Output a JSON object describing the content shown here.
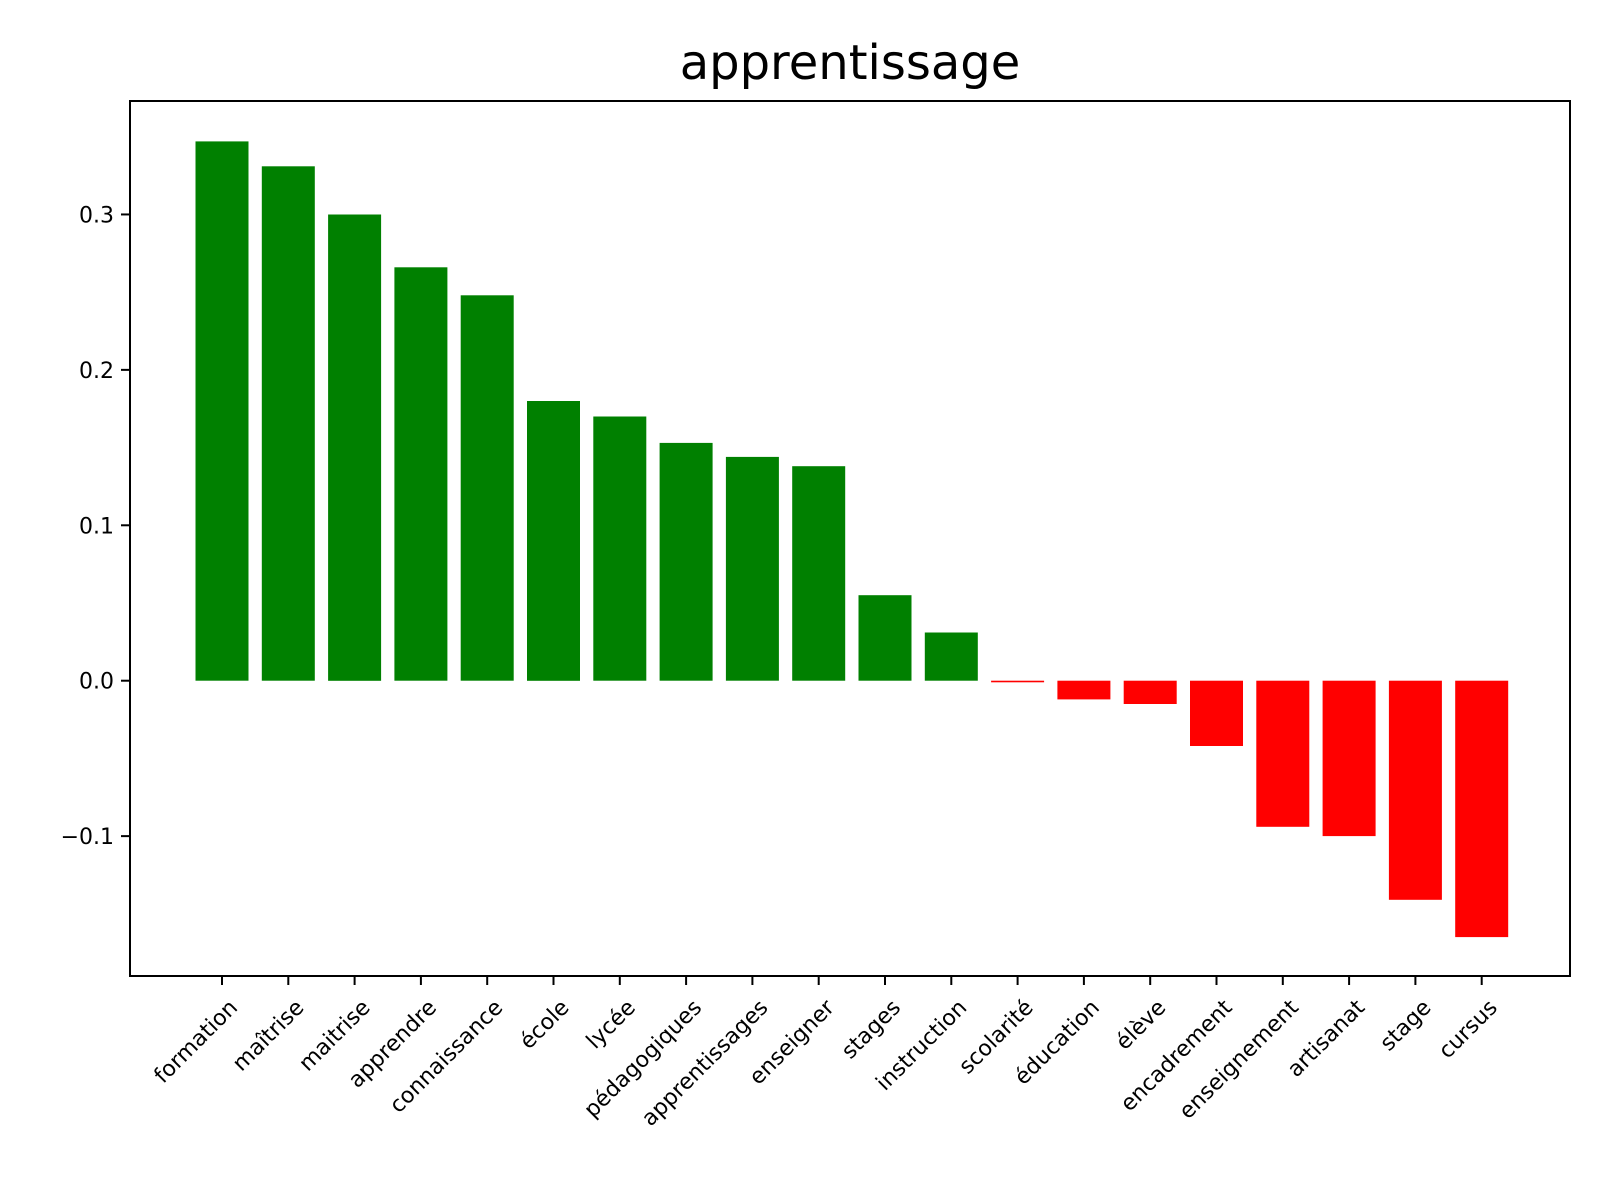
{
  "chart_data": {
    "type": "bar",
    "title": "apprentissage",
    "xlabel": "",
    "ylabel": "",
    "ylim": [
      -0.19,
      0.373
    ],
    "yticks": [
      -0.1,
      0.0,
      0.1,
      0.2,
      0.3
    ],
    "ytick_labels": [
      "−0.1",
      "0.0",
      "0.1",
      "0.2",
      "0.3"
    ],
    "grid": false,
    "legend": "none",
    "positive_color": "#008000",
    "negative_color": "#ff0000",
    "categories": [
      "formation",
      "maîtrise",
      "maitrise",
      "apprendre",
      "connaissance",
      "école",
      "lycée",
      "pédagogiques",
      "apprentissages",
      "enseigner",
      "stages",
      "instruction",
      "scolarité",
      "éducation",
      "élève",
      "encadrement",
      "enseignement",
      "artisanat",
      "stage",
      "cursus"
    ],
    "values": [
      0.347,
      0.331,
      0.3,
      0.266,
      0.248,
      0.18,
      0.17,
      0.153,
      0.144,
      0.138,
      0.055,
      0.031,
      -0.001,
      -0.012,
      -0.015,
      -0.042,
      -0.094,
      -0.1,
      -0.141,
      -0.165
    ]
  }
}
